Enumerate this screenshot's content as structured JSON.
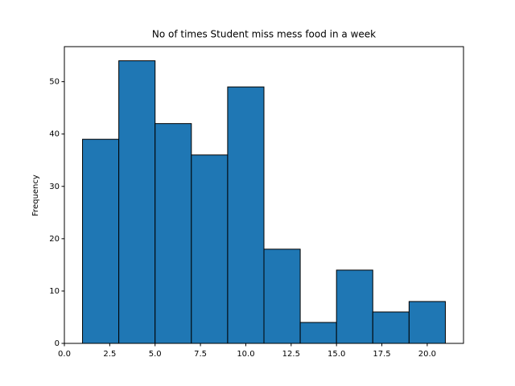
{
  "chart_data": {
    "type": "histogram",
    "title": "No of times Student miss mess food in a week",
    "ylabel": "Frequency",
    "bins": [
      1,
      3,
      5,
      7,
      9,
      11,
      13,
      15,
      17,
      19,
      21
    ],
    "values": [
      39,
      54,
      42,
      36,
      49,
      18,
      4,
      14,
      6,
      8
    ],
    "color": "#1f77b4",
    "edgecolor": "#000000",
    "xlim": [
      0,
      22
    ],
    "ylim": [
      0,
      56.7
    ],
    "xticks": [
      {
        "value": 0,
        "label": "0.0"
      },
      {
        "value": 2.5,
        "label": "2.5"
      },
      {
        "value": 5,
        "label": "5.0"
      },
      {
        "value": 7.5,
        "label": "7.5"
      },
      {
        "value": 10,
        "label": "10.0"
      },
      {
        "value": 12.5,
        "label": "12.5"
      },
      {
        "value": 15,
        "label": "15.0"
      },
      {
        "value": 17.5,
        "label": "17.5"
      },
      {
        "value": 20,
        "label": "20.0"
      }
    ],
    "yticks": [
      0,
      10,
      20,
      30,
      40,
      50
    ],
    "grid": false
  }
}
